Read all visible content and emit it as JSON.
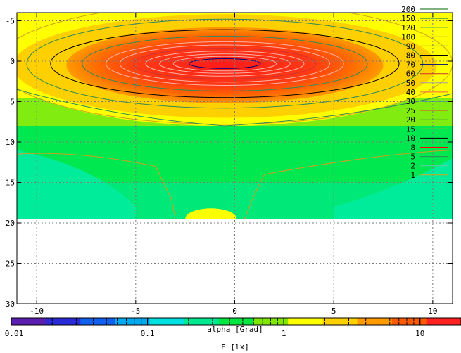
{
  "chart_data": {
    "type": "heatmap",
    "plot": {
      "xlim": [
        -11,
        11
      ],
      "ylim": [
        -6,
        30
      ],
      "y_reversed": true,
      "x_ticks": [
        -10,
        -5,
        0,
        5,
        10
      ],
      "x_tick_labels": [
        "-10",
        "-5",
        "0",
        "5",
        "10"
      ],
      "y_ticks": [
        -5,
        0,
        5,
        10,
        15,
        20,
        25,
        30
      ],
      "y_tick_labels": [
        "-5",
        "0",
        "5",
        "10",
        "15",
        "20",
        "25",
        "30"
      ],
      "grid": true,
      "data_y_extent": [
        -6,
        19.5
      ],
      "peak": {
        "x": -0.5,
        "y": 0.3
      }
    },
    "contour_legend": {
      "position": "top-right",
      "levels": [
        {
          "label": "200",
          "color": "#006400"
        },
        {
          "label": "150",
          "color": "#2e8b57"
        },
        {
          "label": "120",
          "color": "#9acd32"
        },
        {
          "label": "100",
          "color": "#daa520"
        },
        {
          "label": "90",
          "color": "#2e8b57"
        },
        {
          "label": "80",
          "color": "#000000"
        },
        {
          "label": "70",
          "color": "#000080"
        },
        {
          "label": "60",
          "color": "#cc3333"
        },
        {
          "label": "50",
          "color": "#a0a0a0"
        },
        {
          "label": "40",
          "color": "#ff6347"
        },
        {
          "label": "30",
          "color": "#4682b4"
        },
        {
          "label": "25",
          "color": "#d2691e"
        },
        {
          "label": "20",
          "color": "#2e8b57"
        },
        {
          "label": "15",
          "color": "#daa520"
        },
        {
          "label": "10",
          "color": "#000000"
        },
        {
          "label": "8",
          "color": "#ff0000"
        },
        {
          "label": "5",
          "color": "#2e8b57"
        },
        {
          "label": "2",
          "color": "#66ccaa"
        },
        {
          "label": "1",
          "color": "#daa520"
        }
      ]
    },
    "colorbar": {
      "scale": "log",
      "range": [
        0.01,
        20
      ],
      "tick_labels": [
        "0.01",
        "0.1",
        "1",
        "10"
      ],
      "tick_values": [
        0.01,
        0.1,
        1,
        10
      ],
      "title": "alpha [Grad]",
      "xlabel": "E [lx]",
      "colors": [
        "#5a1fb0",
        "#2a2ad8",
        "#1060f0",
        "#00aaf0",
        "#00e0e0",
        "#00e890",
        "#00e840",
        "#80e800",
        "#ffff00",
        "#ffd000",
        "#ff9a00",
        "#ff5a00",
        "#ff2020"
      ]
    }
  }
}
